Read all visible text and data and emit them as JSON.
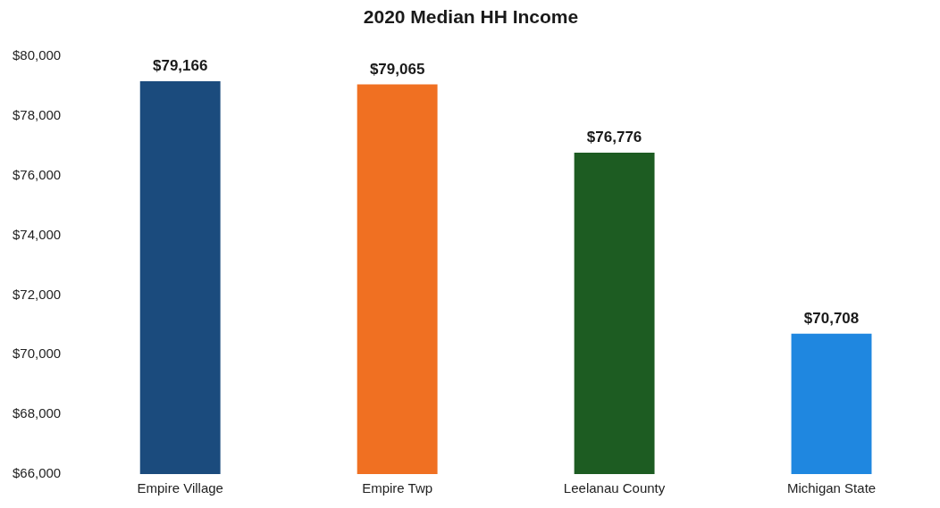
{
  "chart_data": {
    "type": "bar",
    "title": "2020 Median HH Income",
    "categories": [
      "Empire Village",
      "Empire Twp",
      "Leelanau County",
      "Michigan State"
    ],
    "values": [
      79166,
      79065,
      76776,
      70708
    ],
    "colors": [
      "#1b4b7d",
      "#f07022",
      "#1d5c22",
      "#1f87e0"
    ],
    "value_labels": [
      "$79,166",
      "$79,065",
      "$76,776",
      "$70,708"
    ],
    "ylim": [
      66000,
      80000
    ],
    "yticks": [
      {
        "value": 66000,
        "label": "$66,000"
      },
      {
        "value": 68000,
        "label": "$68,000"
      },
      {
        "value": 70000,
        "label": "$70,000"
      },
      {
        "value": 72000,
        "label": "$72,000"
      },
      {
        "value": 74000,
        "label": "$74,000"
      },
      {
        "value": 76000,
        "label": "$76,000"
      },
      {
        "value": 78000,
        "label": "$78,000"
      },
      {
        "value": 80000,
        "label": "$80,000"
      }
    ],
    "grid": false,
    "legend": false
  }
}
